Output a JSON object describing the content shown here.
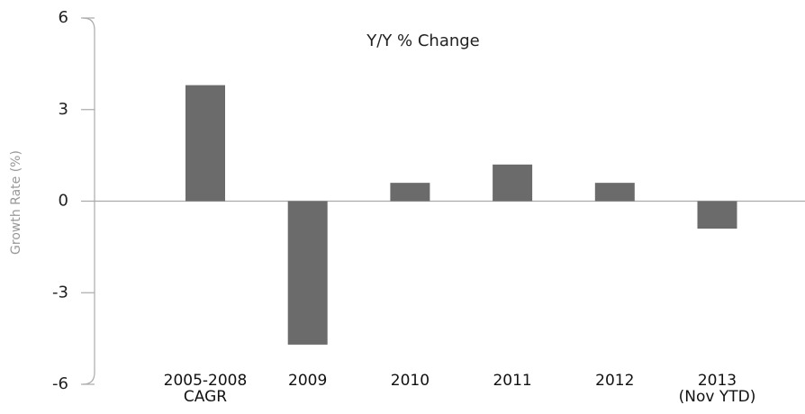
{
  "chart_data": {
    "type": "bar",
    "title": "Y/Y % Change",
    "y_label": "Growth Rate (%)",
    "categories": [
      "2005-2008\nCAGR",
      "2009",
      "2010",
      "2011",
      "2012",
      "2013\n(Nov YTD)"
    ],
    "values": [
      3.8,
      -4.7,
      0.6,
      1.2,
      0.6,
      -0.9
    ],
    "color": "#6b6b6b",
    "ylim": [
      -6,
      6
    ],
    "yticks": [
      -6,
      -3,
      0,
      3,
      6
    ]
  }
}
